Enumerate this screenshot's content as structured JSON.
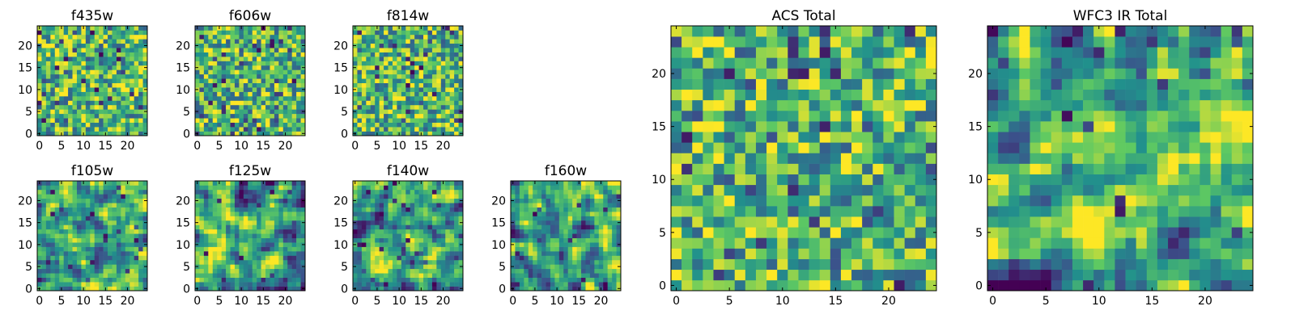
{
  "figure": {
    "colormap": "viridis",
    "colors": [
      "#440154",
      "#3b528b",
      "#21918c",
      "#5ec962",
      "#fde725"
    ]
  },
  "chart_data": [
    {
      "type": "heatmap",
      "title": "f435w",
      "grid": [
        25,
        25
      ],
      "xticks": [
        0,
        5,
        10,
        15,
        20
      ],
      "yticks": [
        0,
        5,
        10,
        15,
        20
      ],
      "pattern": "noise",
      "seed": 11
    },
    {
      "type": "heatmap",
      "title": "f606w",
      "grid": [
        25,
        25
      ],
      "xticks": [
        0,
        5,
        10,
        15,
        20
      ],
      "yticks": [
        0,
        5,
        10,
        15,
        20
      ],
      "pattern": "noise",
      "seed": 23
    },
    {
      "type": "heatmap",
      "title": "f814w",
      "grid": [
        25,
        25
      ],
      "xticks": [
        0,
        5,
        10,
        15,
        20
      ],
      "yticks": [
        0,
        5,
        10,
        15,
        20
      ],
      "pattern": "noise",
      "seed": 37
    },
    {
      "type": "heatmap",
      "title": "f105w",
      "grid": [
        25,
        25
      ],
      "xticks": [
        0,
        5,
        10,
        15,
        20
      ],
      "yticks": [
        0,
        5,
        10,
        15,
        20
      ],
      "pattern": "smooth",
      "seed": 41
    },
    {
      "type": "heatmap",
      "title": "f125w",
      "grid": [
        25,
        25
      ],
      "xticks": [
        0,
        5,
        10,
        15,
        20
      ],
      "yticks": [
        0,
        5,
        10,
        15,
        20
      ],
      "pattern": "smooth",
      "seed": 53
    },
    {
      "type": "heatmap",
      "title": "f140w",
      "grid": [
        25,
        25
      ],
      "xticks": [
        0,
        5,
        10,
        15,
        20
      ],
      "yticks": [
        0,
        5,
        10,
        15,
        20
      ],
      "pattern": "smooth",
      "seed": 67
    },
    {
      "type": "heatmap",
      "title": "f160w",
      "grid": [
        25,
        25
      ],
      "xticks": [
        0,
        5,
        10,
        15,
        20
      ],
      "yticks": [
        0,
        5,
        10,
        15,
        20
      ],
      "pattern": "smooth",
      "seed": 79
    },
    {
      "type": "heatmap",
      "title": "ACS Total",
      "grid": [
        25,
        25
      ],
      "xticks": [
        0,
        5,
        10,
        15,
        20
      ],
      "yticks": [
        0,
        5,
        10,
        15,
        20
      ],
      "pattern": "noise",
      "seed": 83
    },
    {
      "type": "heatmap",
      "title": "WFC3 IR Total",
      "grid": [
        25,
        25
      ],
      "xticks": [
        0,
        5,
        10,
        15,
        20
      ],
      "yticks": [
        0,
        5,
        10,
        15,
        20
      ],
      "pattern": "smooth",
      "seed": 97
    }
  ]
}
